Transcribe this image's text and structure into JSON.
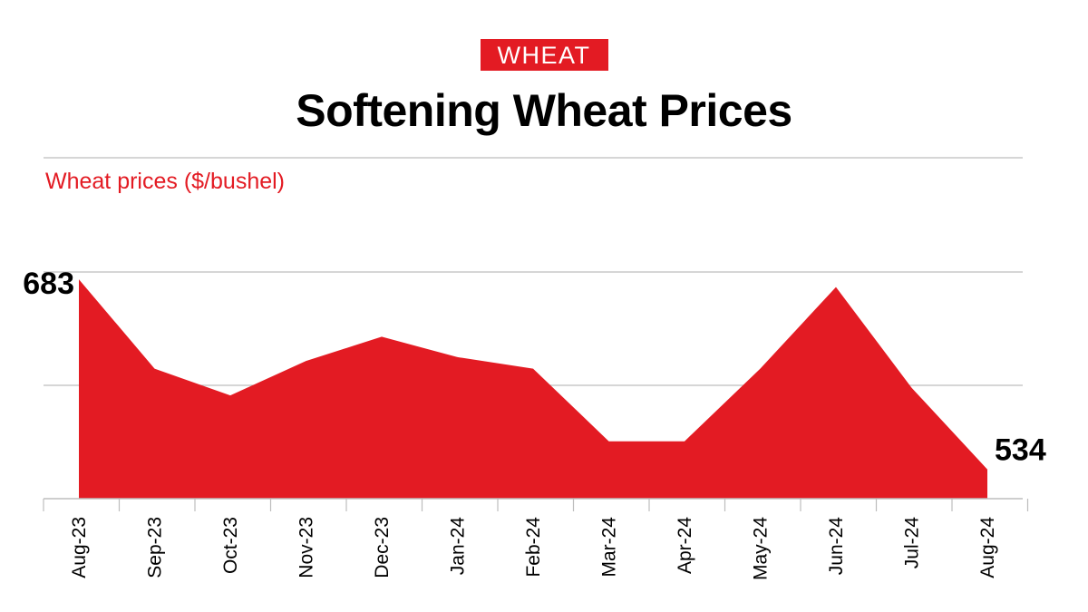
{
  "header": {
    "tag": "WHEAT",
    "title": "Softening Wheat Prices"
  },
  "colors": {
    "accent": "#e31b23",
    "gridline": "#bdbdbd",
    "text": "#000000"
  },
  "chart_data": {
    "type": "area",
    "title": "Softening Wheat Prices",
    "ylabel": "Wheat prices ($/bushel)",
    "xlabel": "",
    "categories": [
      "Aug-23",
      "Sep-23",
      "Oct-23",
      "Nov-23",
      "Dec-23",
      "Jan-24",
      "Feb-24",
      "Mar-24",
      "Apr-24",
      "May-24",
      "Jun-24",
      "Jul-24",
      "Aug-24"
    ],
    "series": [
      {
        "values": [
          683,
          613,
          592,
          619,
          638,
          622,
          613,
          556,
          556,
          613,
          677,
          598,
          534
        ]
      }
    ],
    "ylim": [
      511,
      703
    ],
    "annotations": [
      {
        "index": 0,
        "text": "683"
      },
      {
        "index": 12,
        "text": "534"
      }
    ],
    "grid": true,
    "legend": "none"
  }
}
